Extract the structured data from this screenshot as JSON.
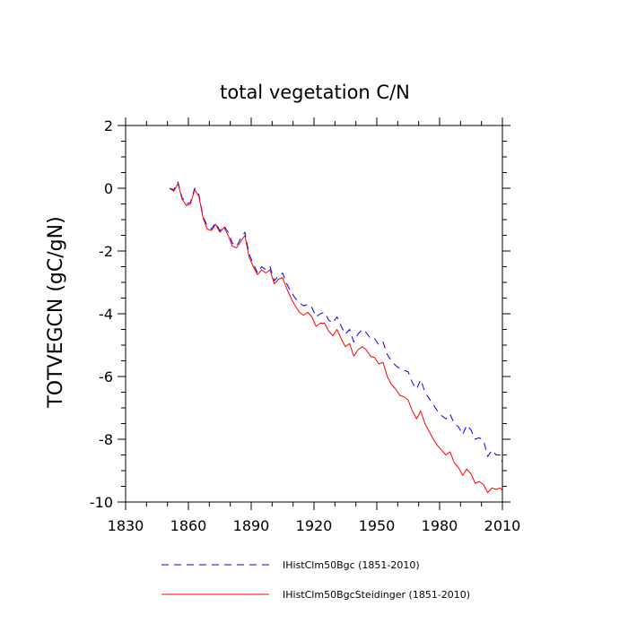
{
  "chart_data": {
    "type": "line",
    "title": "total vegetation C/N",
    "xlabel": "",
    "ylabel": "TOTVEGCN  (gC/gN)",
    "xlim": [
      1830,
      2010
    ],
    "ylim": [
      -10,
      2
    ],
    "xticks": [
      "1830",
      "1860",
      "1890",
      "1920",
      "1950",
      "1980",
      "2010"
    ],
    "yticks": [
      "2",
      "0",
      "-2",
      "-4",
      "-6",
      "-8",
      "-10"
    ],
    "grid": false,
    "legend_position": "bottom",
    "series": [
      {
        "name": "IHistClm50Bgc (1851-2010)",
        "color": "#0000ff",
        "dash": "dashed",
        "x": [
          1851,
          1853,
          1855,
          1857,
          1859,
          1861,
          1863,
          1865,
          1867,
          1869,
          1871,
          1873,
          1875,
          1877,
          1879,
          1881,
          1883,
          1885,
          1887,
          1889,
          1891,
          1893,
          1895,
          1897,
          1899,
          1901,
          1903,
          1905,
          1907,
          1909,
          1911,
          1913,
          1915,
          1917,
          1919,
          1921,
          1923,
          1925,
          1927,
          1929,
          1931,
          1933,
          1935,
          1937,
          1939,
          1941,
          1943,
          1945,
          1947,
          1949,
          1951,
          1953,
          1955,
          1957,
          1959,
          1961,
          1963,
          1965,
          1967,
          1969,
          1971,
          1973,
          1975,
          1977,
          1979,
          1981,
          1983,
          1985,
          1987,
          1989,
          1991,
          1993,
          1995,
          1997,
          1999,
          2001,
          2003,
          2005,
          2007,
          2009,
          2010
        ],
        "y": [
          0.0,
          -0.05,
          0.2,
          -0.3,
          -0.5,
          -0.45,
          0.0,
          -0.2,
          -0.9,
          -1.2,
          -1.3,
          -1.1,
          -1.35,
          -1.2,
          -1.4,
          -1.75,
          -1.85,
          -1.6,
          -1.4,
          -2.1,
          -2.4,
          -2.7,
          -2.5,
          -2.6,
          -2.5,
          -2.95,
          -2.8,
          -2.7,
          -3.05,
          -3.3,
          -3.5,
          -3.65,
          -3.75,
          -3.7,
          -3.8,
          -4.1,
          -4.0,
          -3.95,
          -4.2,
          -4.3,
          -4.1,
          -4.4,
          -4.65,
          -4.5,
          -4.9,
          -4.65,
          -4.5,
          -4.6,
          -4.8,
          -4.8,
          -5.0,
          -4.9,
          -5.3,
          -5.5,
          -5.65,
          -5.75,
          -5.8,
          -5.85,
          -6.2,
          -6.4,
          -6.1,
          -6.5,
          -6.7,
          -6.9,
          -7.1,
          -7.25,
          -7.35,
          -7.2,
          -7.5,
          -7.6,
          -7.85,
          -7.55,
          -7.7,
          -8.0,
          -7.95,
          -8.05,
          -8.55,
          -8.35,
          -8.5,
          -8.5,
          -8.75
        ]
      },
      {
        "name": "IHistClm50BgcSteidinger (1851-2010)",
        "color": "#ff0000",
        "dash": "solid",
        "x": [
          1851,
          1853,
          1855,
          1857,
          1859,
          1861,
          1863,
          1865,
          1867,
          1869,
          1871,
          1873,
          1875,
          1877,
          1879,
          1881,
          1883,
          1885,
          1887,
          1889,
          1891,
          1893,
          1895,
          1897,
          1899,
          1901,
          1903,
          1905,
          1907,
          1909,
          1911,
          1913,
          1915,
          1917,
          1919,
          1921,
          1923,
          1925,
          1927,
          1929,
          1931,
          1933,
          1935,
          1937,
          1939,
          1941,
          1943,
          1945,
          1947,
          1949,
          1951,
          1953,
          1955,
          1957,
          1959,
          1961,
          1963,
          1965,
          1967,
          1969,
          1971,
          1973,
          1975,
          1977,
          1979,
          1981,
          1983,
          1985,
          1987,
          1989,
          1991,
          1993,
          1995,
          1997,
          1999,
          2001,
          2003,
          2005,
          2007,
          2009,
          2010
        ],
        "y": [
          0.0,
          -0.1,
          0.15,
          -0.35,
          -0.55,
          -0.5,
          -0.05,
          -0.25,
          -0.95,
          -1.3,
          -1.35,
          -1.15,
          -1.4,
          -1.25,
          -1.5,
          -1.85,
          -1.9,
          -1.7,
          -1.5,
          -2.2,
          -2.5,
          -2.75,
          -2.6,
          -2.7,
          -2.6,
          -3.05,
          -2.9,
          -2.85,
          -3.2,
          -3.5,
          -3.75,
          -3.95,
          -4.05,
          -3.95,
          -4.1,
          -4.4,
          -4.3,
          -4.3,
          -4.55,
          -4.7,
          -4.5,
          -4.8,
          -5.05,
          -4.95,
          -5.35,
          -5.15,
          -5.05,
          -5.15,
          -5.35,
          -5.4,
          -5.6,
          -5.55,
          -6.0,
          -6.25,
          -6.4,
          -6.6,
          -6.65,
          -6.75,
          -7.1,
          -7.35,
          -7.1,
          -7.5,
          -7.75,
          -8.0,
          -8.2,
          -8.35,
          -8.5,
          -8.4,
          -8.75,
          -8.9,
          -9.15,
          -8.95,
          -9.1,
          -9.4,
          -9.35,
          -9.45,
          -9.7,
          -9.55,
          -9.6,
          -9.55,
          -9.65
        ]
      }
    ]
  }
}
